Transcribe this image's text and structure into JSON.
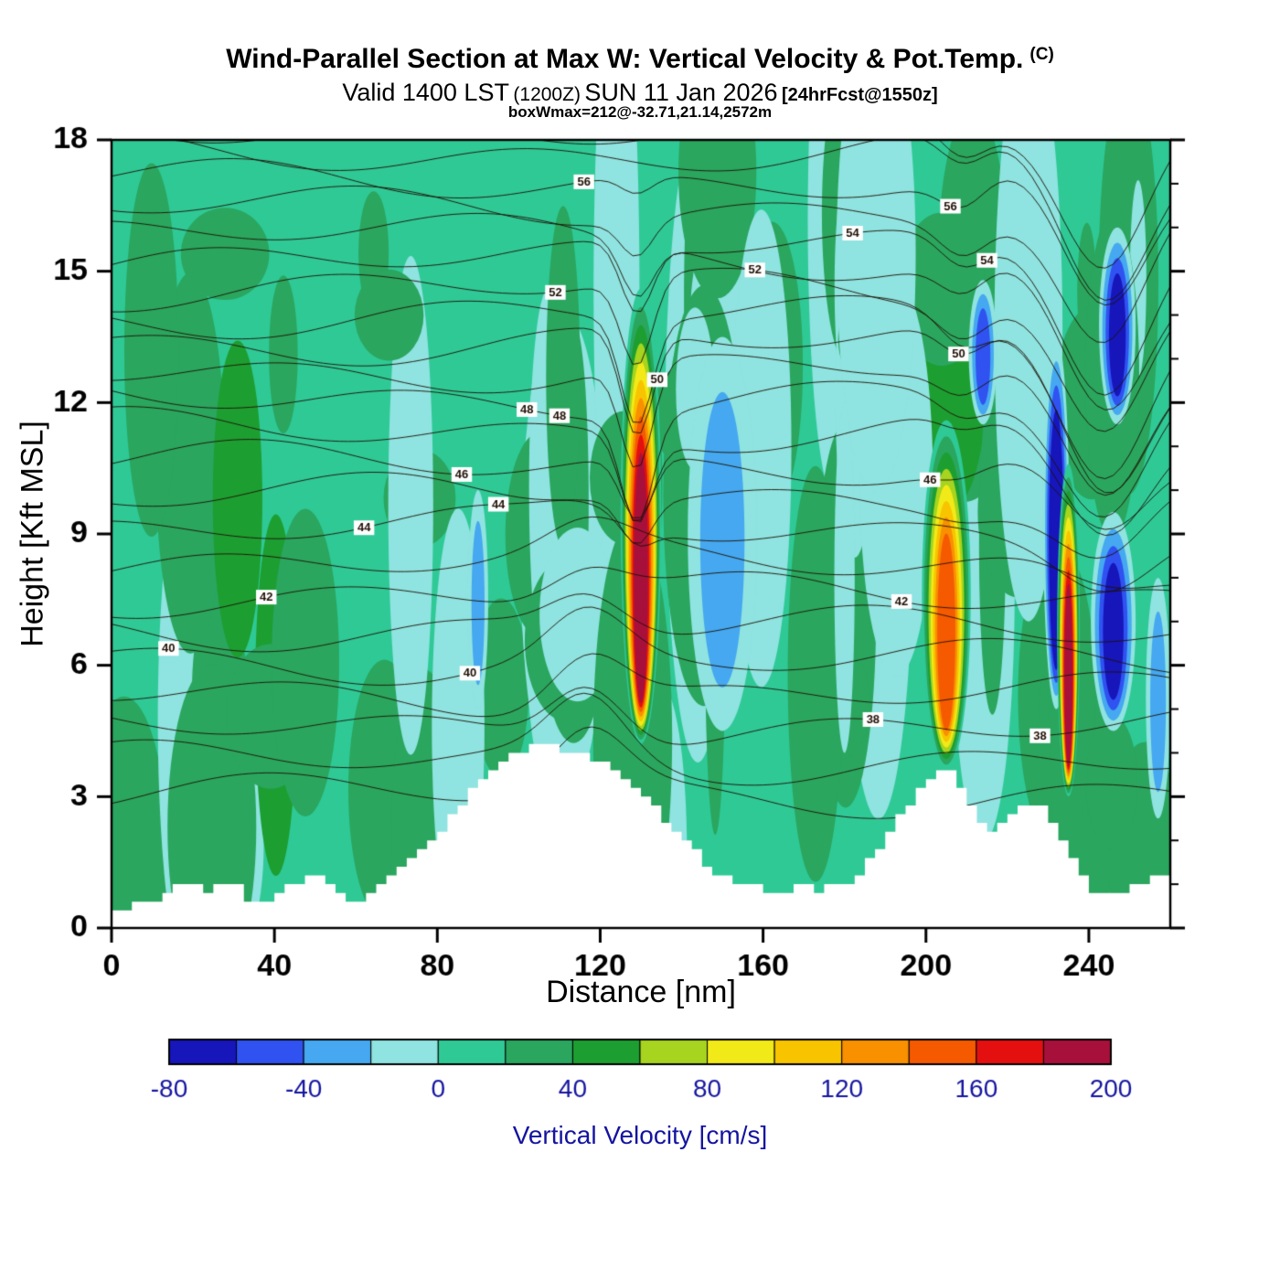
{
  "header": {
    "title_main": "Wind-Parallel Section at Max W: Vertical Velocity & Pot.Temp.",
    "title_suffix": "(C)",
    "subtitle_valid": "Valid 1400 LST",
    "subtitle_zulu": "(1200Z)",
    "subtitle_date": "SUN 11 Jan 2026",
    "subtitle_fcst": "[24hrFcst@1550z]",
    "annotation": "boxWmax=212@-32.71,21.14,2572m"
  },
  "axes": {
    "x_label": "Distance [nm]",
    "y_label": "Height [Kft MSL]",
    "x_ticks": [
      0,
      40,
      80,
      120,
      160,
      200,
      240
    ],
    "y_ticks": [
      0,
      3,
      6,
      9,
      12,
      15,
      18
    ]
  },
  "colorbar": {
    "label": "Vertical Velocity [cm/s]",
    "min": -80,
    "max": 200,
    "step": 20,
    "ticks": [
      -80,
      -40,
      0,
      40,
      80,
      120,
      160,
      200
    ],
    "tick_color": "#1414a0",
    "colors": [
      "#1616bb",
      "#2f52f0",
      "#45a8f0",
      "#8fe3e0",
      "#2fc996",
      "#2aa65e",
      "#1d9e31",
      "#a6d41f",
      "#f2ea18",
      "#f8c400",
      "#f89000",
      "#f55a00",
      "#e41010",
      "#a8103c"
    ]
  },
  "chart_data": {
    "type": "heatmap",
    "title": "Wind-Parallel Section at Max W: Vertical Velocity & Pot.Temp. (C)",
    "xlabel": "Distance [nm]",
    "ylabel": "Height [Kft MSL]",
    "shaded_field": "vertical velocity [cm/s]",
    "contour_field": "potential temperature [C]",
    "xlim": [
      0,
      260
    ],
    "ylim": [
      0,
      18
    ],
    "background_value": 10,
    "noise_seed": 7,
    "updrafts": [
      {
        "x": 130,
        "base_kft": 4.2,
        "top_kft": 14.6,
        "half_width_nm": 5.0,
        "peak": 190
      },
      {
        "x": 205,
        "base_kft": 3.6,
        "top_kft": 11.6,
        "half_width_nm": 6.0,
        "peak": 150
      },
      {
        "x": 235,
        "base_kft": 3.0,
        "top_kft": 10.6,
        "half_width_nm": 2.8,
        "peak": 185
      }
    ],
    "downdrafts": [
      {
        "x": 90,
        "base_kft": 5.0,
        "top_kft": 10.0,
        "half_width_nm": 2.5,
        "peak": -30
      },
      {
        "x": 150,
        "base_kft": 4.5,
        "top_kft": 13.5,
        "half_width_nm": 8.5,
        "peak": -40
      },
      {
        "x": 180,
        "base_kft": 4.0,
        "top_kft": 12.0,
        "half_width_nm": 2.5,
        "peak": -15
      },
      {
        "x": 214,
        "base_kft": 11.5,
        "top_kft": 14.8,
        "half_width_nm": 3.5,
        "peak": -55
      },
      {
        "x": 232,
        "base_kft": 5.0,
        "top_kft": 13.5,
        "half_width_nm": 3.2,
        "peak": -85
      },
      {
        "x": 246,
        "base_kft": 4.5,
        "top_kft": 9.5,
        "half_width_nm": 5.5,
        "peak": -70
      },
      {
        "x": 247,
        "base_kft": 11.5,
        "top_kft": 16.0,
        "half_width_nm": 4.5,
        "peak": -75
      },
      {
        "x": 257,
        "base_kft": 2.5,
        "top_kft": 8.0,
        "half_width_nm": 3.0,
        "peak": -35
      }
    ],
    "theta_levels": {
      "min": 36,
      "max": 58,
      "interval": 1,
      "labeled": [
        38,
        40,
        42,
        44,
        46,
        48,
        50,
        52,
        54,
        56
      ]
    },
    "terrain_nm_kft": [
      [
        0,
        0.45
      ],
      [
        6,
        0.5
      ],
      [
        12,
        0.6
      ],
      [
        16,
        1.0
      ],
      [
        20,
        1.1
      ],
      [
        24,
        0.8
      ],
      [
        28,
        1.0
      ],
      [
        32,
        0.9
      ],
      [
        34,
        0.5
      ],
      [
        38,
        0.5
      ],
      [
        42,
        0.9
      ],
      [
        46,
        1.0
      ],
      [
        50,
        1.2
      ],
      [
        54,
        0.9
      ],
      [
        58,
        0.6
      ],
      [
        62,
        0.7
      ],
      [
        66,
        0.9
      ],
      [
        70,
        1.4
      ],
      [
        74,
        1.6
      ],
      [
        78,
        1.9
      ],
      [
        82,
        2.3
      ],
      [
        86,
        2.8
      ],
      [
        90,
        3.3
      ],
      [
        94,
        3.7
      ],
      [
        98,
        3.9
      ],
      [
        102,
        4.1
      ],
      [
        106,
        4.2
      ],
      [
        110,
        4.1
      ],
      [
        114,
        4.0
      ],
      [
        118,
        3.9
      ],
      [
        122,
        3.7
      ],
      [
        126,
        3.4
      ],
      [
        130,
        3.0
      ],
      [
        134,
        2.7
      ],
      [
        138,
        2.3
      ],
      [
        142,
        1.9
      ],
      [
        146,
        1.5
      ],
      [
        150,
        1.2
      ],
      [
        154,
        1.05
      ],
      [
        158,
        0.95
      ],
      [
        162,
        0.8
      ],
      [
        166,
        0.85
      ],
      [
        170,
        0.95
      ],
      [
        174,
        0.85
      ],
      [
        178,
        0.95
      ],
      [
        182,
        1.1
      ],
      [
        186,
        1.5
      ],
      [
        190,
        2.0
      ],
      [
        194,
        2.6
      ],
      [
        198,
        3.1
      ],
      [
        202,
        3.5
      ],
      [
        206,
        3.6
      ],
      [
        208,
        3.3
      ],
      [
        212,
        2.7
      ],
      [
        216,
        2.1
      ],
      [
        220,
        2.4
      ],
      [
        224,
        2.8
      ],
      [
        228,
        2.9
      ],
      [
        230,
        2.7
      ],
      [
        234,
        2.0
      ],
      [
        238,
        1.2
      ],
      [
        242,
        0.8
      ],
      [
        246,
        0.7
      ],
      [
        250,
        0.9
      ],
      [
        254,
        1.1
      ],
      [
        258,
        1.2
      ],
      [
        260,
        1.1
      ]
    ]
  }
}
